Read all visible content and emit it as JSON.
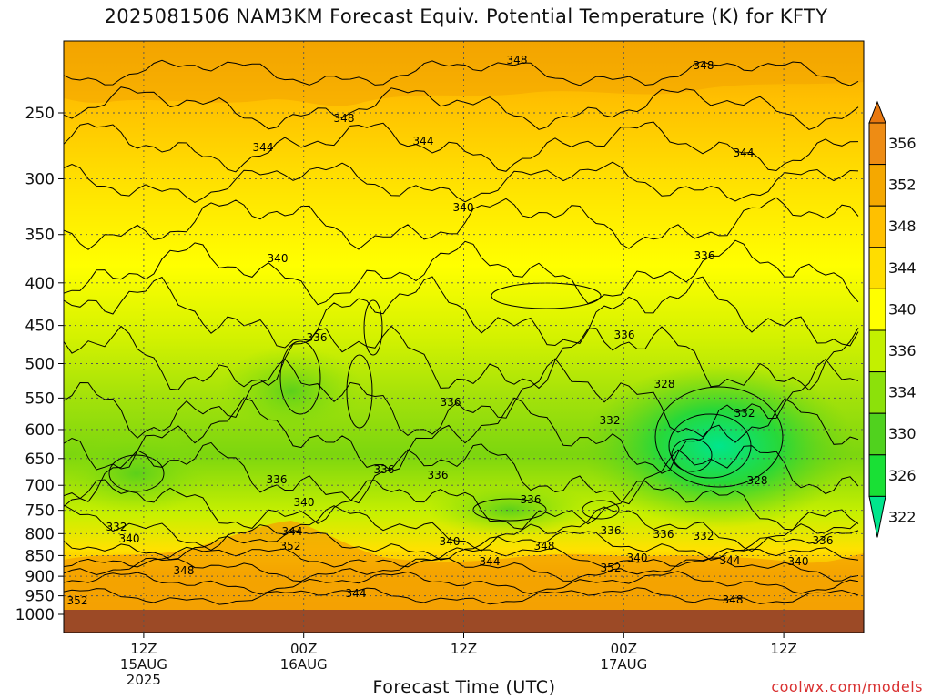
{
  "chart_data": {
    "type": "heatmap",
    "title": "2025081506 NAM3KM Forecast Equiv. Potential Temperature (K) for KFTY",
    "xlabel": "Forecast Time (UTC)",
    "ylabel": "",
    "y_scale": "log-pressure (hPa), inverted",
    "yticks": [
      "250",
      "300",
      "350",
      "400",
      "450",
      "500",
      "550",
      "600",
      "650",
      "700",
      "750",
      "800",
      "850",
      "900",
      "950",
      "1000"
    ],
    "ylim": [
      1000,
      200
    ],
    "x_ticks": [
      {
        "line1": "12Z",
        "line2": "15AUG",
        "line3": "2025"
      },
      {
        "line1": "00Z",
        "line2": "16AUG",
        "line3": ""
      },
      {
        "line1": "12Z",
        "line2": "",
        "line3": ""
      },
      {
        "line1": "00Z",
        "line2": "17AUG",
        "line3": ""
      },
      {
        "line1": "12Z",
        "line2": "",
        "line3": ""
      }
    ],
    "xlim_hours_from_init": [
      6,
      66
    ],
    "x_tick_hours": [
      12,
      24,
      36,
      48,
      60
    ],
    "colorbar": {
      "labels": [
        "356",
        "352",
        "348",
        "344",
        "340",
        "336",
        "334",
        "330",
        "326",
        "322"
      ],
      "colors": [
        "#00e68c",
        "#19e035",
        "#50d21e",
        "#8ce10a",
        "#c3f000",
        "#ffff00",
        "#ffdd00",
        "#ffc000",
        "#f5a800",
        "#ee8c14",
        "#e8780f"
      ],
      "extend": "both"
    },
    "contour_labels": [
      "348",
      "348",
      "348",
      "344",
      "344",
      "344",
      "340",
      "340",
      "336",
      "336",
      "336",
      "336",
      "336",
      "336",
      "336",
      "336",
      "328",
      "332",
      "332",
      "328",
      "340",
      "332",
      "340",
      "344",
      "352",
      "348",
      "340",
      "344",
      "348",
      "352",
      "340",
      "336",
      "336",
      "332",
      "344",
      "336",
      "340",
      "348",
      "352",
      "344"
    ],
    "grid": true,
    "ground_color": "#9c4a26"
  },
  "credit": "coolwx.com/models"
}
